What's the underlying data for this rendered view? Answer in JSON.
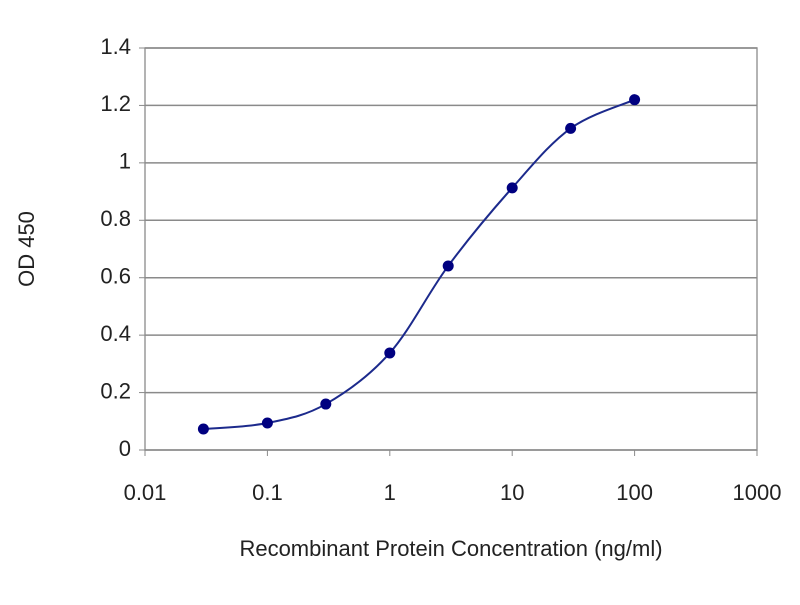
{
  "chart_data": {
    "type": "line",
    "x_label": "Recombinant Protein Concentration (ng/ml)",
    "y_label": "OD 450",
    "x": [
      0.03,
      0.1,
      0.3,
      1,
      3,
      10,
      30,
      100
    ],
    "values": [
      0.073,
      0.094,
      0.16,
      0.338,
      0.641,
      0.913,
      1.12,
      1.22
    ],
    "color": "#1c2a8c",
    "marker_color": "#000080",
    "xlog": true,
    "xlim": [
      0.01,
      1000
    ],
    "xticks": [
      0.01,
      0.1,
      1,
      10,
      100,
      1000
    ],
    "ylim": [
      0,
      1.4
    ],
    "yticks": [
      0,
      0.2,
      0.4,
      0.6,
      0.8,
      1,
      1.2,
      1.4
    ],
    "grid": true
  }
}
